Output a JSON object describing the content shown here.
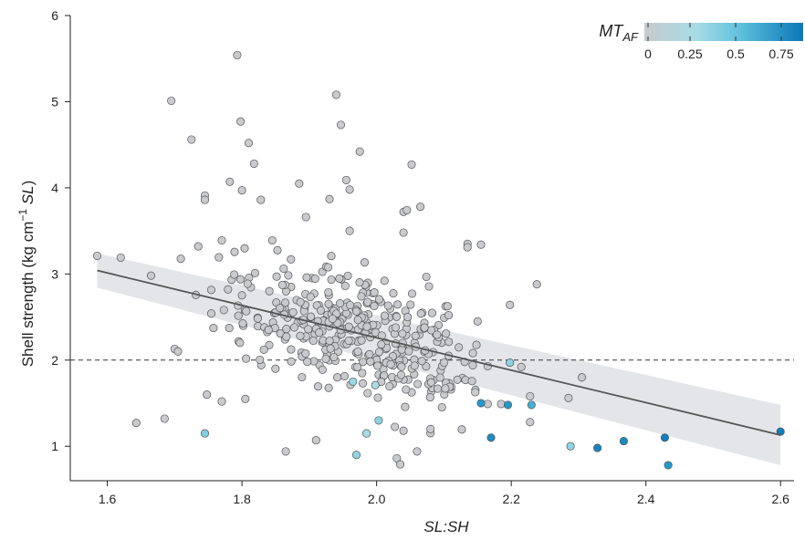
{
  "chart_data": {
    "type": "scatter",
    "xlabel": "SL:SH",
    "ylabel": {
      "main": "Shell strength (kg cm",
      "sup": "−1",
      "unit": "SL",
      "close": ")"
    },
    "xlim": [
      1.545,
      2.62
    ],
    "ylim": [
      0.6,
      6.0
    ],
    "x_ticks": [
      1.6,
      1.8,
      2.0,
      2.2,
      2.4,
      2.6
    ],
    "x_tick_labels": [
      "1.6",
      "1.8",
      "2.0",
      "2.2",
      "2.4",
      "2.6"
    ],
    "y_ticks": [
      1,
      2,
      3,
      4,
      5,
      6
    ],
    "y_tick_labels": [
      "1",
      "2",
      "3",
      "4",
      "5",
      "6"
    ],
    "reference_line": {
      "y": 2.0,
      "style": "dashed"
    },
    "regression": {
      "x": [
        1.585,
        2.6
      ],
      "y": [
        3.04,
        1.13
      ],
      "ci_lower": [
        2.84,
        0.78
      ],
      "ci_upper": [
        3.24,
        1.48
      ]
    },
    "legend": {
      "title": "MT",
      "title_sub": "AF",
      "range": [
        0,
        0.87
      ],
      "ticks": [
        0,
        0.25,
        0.5,
        0.75
      ],
      "tick_labels": [
        "0",
        "0.25",
        "0.5",
        "0.75"
      ],
      "placement": "top-right",
      "colors": {
        "low": "#c7cacc",
        "mid": "#7dd1e0",
        "high": "#0a77b8"
      }
    },
    "colored_points": [
      {
        "x": 1.745,
        "y": 1.15,
        "v": 0.25
      },
      {
        "x": 1.965,
        "y": 1.75,
        "v": 0.18
      },
      {
        "x": 1.97,
        "y": 0.9,
        "v": 0.2
      },
      {
        "x": 1.985,
        "y": 1.15,
        "v": 0.15
      },
      {
        "x": 1.998,
        "y": 1.71,
        "v": 0.15
      },
      {
        "x": 2.003,
        "y": 1.3,
        "v": 0.22
      },
      {
        "x": 2.155,
        "y": 1.5,
        "v": 0.6
      },
      {
        "x": 2.17,
        "y": 1.1,
        "v": 0.7
      },
      {
        "x": 2.195,
        "y": 1.48,
        "v": 0.6
      },
      {
        "x": 2.198,
        "y": 1.97,
        "v": 0.22
      },
      {
        "x": 2.23,
        "y": 1.48,
        "v": 0.45
      },
      {
        "x": 2.288,
        "y": 1.0,
        "v": 0.2
      },
      {
        "x": 2.328,
        "y": 0.98,
        "v": 0.75
      },
      {
        "x": 2.367,
        "y": 1.06,
        "v": 0.72
      },
      {
        "x": 2.428,
        "y": 1.1,
        "v": 0.8
      },
      {
        "x": 2.433,
        "y": 0.78,
        "v": 0.6
      },
      {
        "x": 2.6,
        "y": 1.17,
        "v": 0.82
      }
    ],
    "outlier_points": [
      {
        "x": 1.585,
        "y": 3.21
      },
      {
        "x": 1.62,
        "y": 3.19
      },
      {
        "x": 1.643,
        "y": 1.27
      },
      {
        "x": 1.665,
        "y": 2.98
      },
      {
        "x": 1.685,
        "y": 1.32
      },
      {
        "x": 1.695,
        "y": 5.01
      },
      {
        "x": 1.7,
        "y": 2.13
      },
      {
        "x": 1.705,
        "y": 2.1
      },
      {
        "x": 1.725,
        "y": 4.56
      },
      {
        "x": 1.735,
        "y": 3.32
      },
      {
        "x": 1.745,
        "y": 3.91
      },
      {
        "x": 1.745,
        "y": 3.86
      },
      {
        "x": 1.748,
        "y": 1.6
      },
      {
        "x": 1.77,
        "y": 3.39
      },
      {
        "x": 1.77,
        "y": 1.52
      },
      {
        "x": 1.782,
        "y": 4.07
      },
      {
        "x": 1.793,
        "y": 5.54
      },
      {
        "x": 1.798,
        "y": 4.77
      },
      {
        "x": 1.8,
        "y": 3.97
      },
      {
        "x": 1.805,
        "y": 1.55
      },
      {
        "x": 1.81,
        "y": 4.52
      },
      {
        "x": 1.818,
        "y": 4.28
      },
      {
        "x": 1.828,
        "y": 3.86
      },
      {
        "x": 1.845,
        "y": 3.39
      },
      {
        "x": 1.865,
        "y": 0.94
      },
      {
        "x": 1.885,
        "y": 4.05
      },
      {
        "x": 1.895,
        "y": 3.66
      },
      {
        "x": 1.91,
        "y": 1.07
      },
      {
        "x": 1.93,
        "y": 3.87
      },
      {
        "x": 1.94,
        "y": 5.08
      },
      {
        "x": 1.947,
        "y": 4.73
      },
      {
        "x": 1.955,
        "y": 4.09
      },
      {
        "x": 1.96,
        "y": 3.98
      },
      {
        "x": 1.96,
        "y": 3.5
      },
      {
        "x": 1.975,
        "y": 4.42
      },
      {
        "x": 2.03,
        "y": 0.86
      },
      {
        "x": 2.035,
        "y": 0.79
      },
      {
        "x": 2.04,
        "y": 3.48
      },
      {
        "x": 2.04,
        "y": 3.72
      },
      {
        "x": 2.045,
        "y": 3.74
      },
      {
        "x": 2.04,
        "y": 1.18
      },
      {
        "x": 2.052,
        "y": 4.27
      },
      {
        "x": 2.065,
        "y": 3.78
      },
      {
        "x": 2.06,
        "y": 0.94
      },
      {
        "x": 2.08,
        "y": 1.2
      },
      {
        "x": 2.135,
        "y": 3.35
      },
      {
        "x": 2.135,
        "y": 3.31
      },
      {
        "x": 2.155,
        "y": 3.34
      },
      {
        "x": 2.15,
        "y": 2.45
      },
      {
        "x": 2.165,
        "y": 1.93
      },
      {
        "x": 2.165,
        "y": 1.49
      },
      {
        "x": 2.185,
        "y": 1.49
      },
      {
        "x": 2.198,
        "y": 2.64
      },
      {
        "x": 2.215,
        "y": 1.92
      },
      {
        "x": 2.228,
        "y": 1.58
      },
      {
        "x": 2.228,
        "y": 1.28
      },
      {
        "x": 2.238,
        "y": 2.88
      },
      {
        "x": 2.285,
        "y": 1.56
      },
      {
        "x": 2.305,
        "y": 1.8
      }
    ]
  }
}
